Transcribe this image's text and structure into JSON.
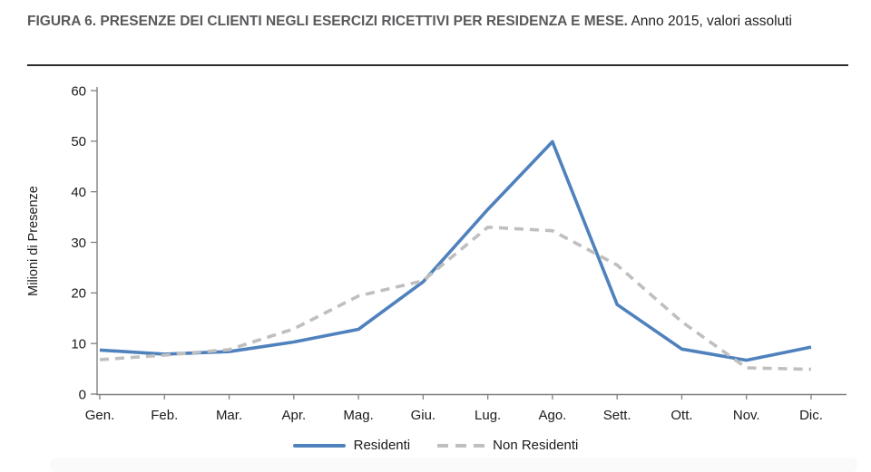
{
  "figure": {
    "title_bold": "FIGURA 6. PRESENZE DEI CLIENTI NEGLI ESERCIZI RICETTIVI PER RESIDENZA E MESE.",
    "title_regular": " Anno 2015, valori assoluti"
  },
  "chart_data": {
    "type": "line",
    "categories": [
      "Gen.",
      "Feb.",
      "Mar.",
      "Apr.",
      "Mag.",
      "Giu.",
      "Lug.",
      "Ago.",
      "Sett.",
      "Ott.",
      "Nov.",
      "Dic."
    ],
    "series": [
      {
        "name": "Residenti",
        "style": "solid",
        "color": "#4F81BD",
        "values": [
          8.7,
          7.9,
          8.4,
          10.3,
          12.8,
          22.2,
          36.5,
          49.9,
          17.7,
          8.9,
          6.7,
          9.3
        ]
      },
      {
        "name": "Non Residenti",
        "style": "dashed",
        "color": "#BFBFBF",
        "values": [
          6.8,
          7.7,
          8.8,
          12.9,
          19.4,
          22.4,
          33.0,
          32.3,
          25.5,
          14.3,
          5.2,
          4.9
        ]
      }
    ],
    "xlabel": "",
    "ylabel": "Milioni di Presenze",
    "ylim": [
      0,
      60
    ],
    "yticks": [
      0,
      10,
      20,
      30,
      40,
      50,
      60
    ],
    "grid": false,
    "legend_position": "bottom"
  }
}
